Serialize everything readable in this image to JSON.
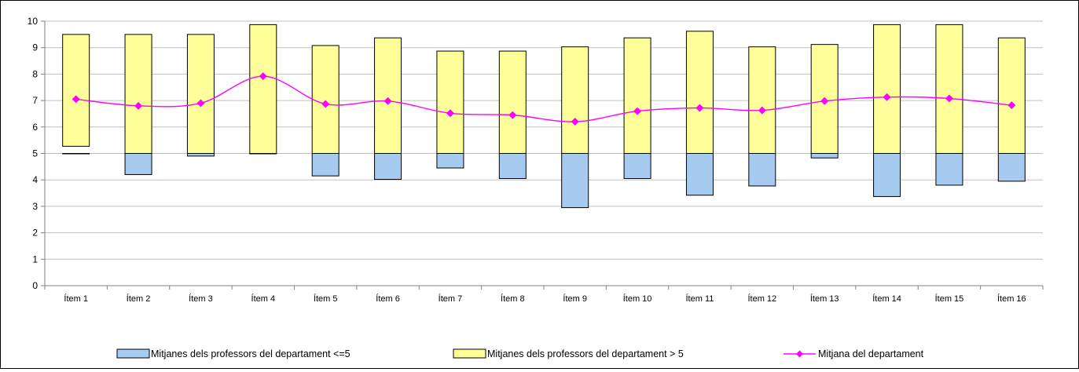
{
  "chart_data": {
    "type": "bar",
    "categories": [
      "Ítem 1",
      "Ítem 2",
      "Ítem 3",
      "Ítem 4",
      "Ítem 5",
      "Ítem 6",
      "Ítem 7",
      "Ítem 8",
      "Ítem 9",
      "Ítem 10",
      "Ítem 11",
      "Ítem 12",
      "Ítem 13",
      "Ítem 14",
      "Ítem 15",
      "Ítem 16"
    ],
    "ylim": [
      0,
      10
    ],
    "yticks": [
      "0",
      "1",
      "2",
      "3",
      "4",
      "5",
      "6",
      "7",
      "8",
      "9",
      "10"
    ],
    "grid": true,
    "legend_position": "bottom",
    "series": [
      {
        "name": "Mitjanes dels professors del departament <=5",
        "kind": "floating-bar",
        "color": "#a6caf0",
        "ranges": [
          [
            5,
            5
          ],
          [
            4.2,
            5
          ],
          [
            4.9,
            5
          ],
          [
            5,
            5
          ],
          [
            4.15,
            5
          ],
          [
            4.02,
            5
          ],
          [
            4.45,
            5
          ],
          [
            4.05,
            5
          ],
          [
            2.95,
            5
          ],
          [
            4.05,
            5
          ],
          [
            3.42,
            5
          ],
          [
            3.77,
            5
          ],
          [
            4.83,
            5
          ],
          [
            3.37,
            5
          ],
          [
            3.8,
            5
          ],
          [
            3.95,
            5
          ]
        ]
      },
      {
        "name": "Mitjanes dels professors del departament > 5",
        "kind": "floating-bar",
        "color": "#ffff99",
        "ranges": [
          [
            5.27,
            9.5
          ],
          [
            5,
            9.5
          ],
          [
            5,
            9.5
          ],
          [
            5,
            9.87
          ],
          [
            5,
            9.08
          ],
          [
            5,
            9.37
          ],
          [
            5,
            8.87
          ],
          [
            5,
            8.87
          ],
          [
            5,
            9.03
          ],
          [
            5,
            9.37
          ],
          [
            5,
            9.62
          ],
          [
            5,
            9.03
          ],
          [
            5,
            9.12
          ],
          [
            5,
            9.87
          ],
          [
            5,
            9.87
          ],
          [
            5,
            9.37
          ]
        ]
      },
      {
        "name": "Mitjana del departament",
        "kind": "line",
        "color": "#ff00ff",
        "values": [
          7.05,
          6.8,
          6.9,
          7.92,
          6.87,
          6.98,
          6.52,
          6.45,
          6.2,
          6.6,
          6.72,
          6.63,
          6.98,
          7.13,
          7.08,
          6.82
        ]
      }
    ]
  }
}
